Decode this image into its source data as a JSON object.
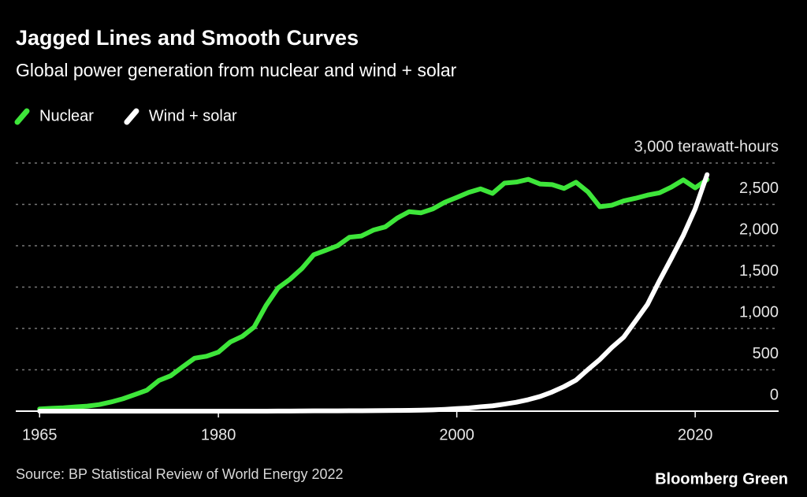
{
  "chart_data": {
    "type": "line",
    "title": "Jagged Lines and Smooth Curves",
    "subtitle": "Global power generation from nuclear and wind + solar",
    "source": "Source: BP Statistical Review of World Energy 2022",
    "credit": "Bloomberg Green",
    "x": [
      1965,
      1966,
      1967,
      1968,
      1969,
      1970,
      1971,
      1972,
      1973,
      1974,
      1975,
      1976,
      1977,
      1978,
      1979,
      1980,
      1981,
      1982,
      1983,
      1984,
      1985,
      1986,
      1987,
      1988,
      1989,
      1990,
      1991,
      1992,
      1993,
      1994,
      1995,
      1996,
      1997,
      1998,
      1999,
      2000,
      2001,
      2002,
      2003,
      2004,
      2005,
      2006,
      2007,
      2008,
      2009,
      2010,
      2011,
      2012,
      2013,
      2014,
      2015,
      2016,
      2017,
      2018,
      2019,
      2020,
      2021
    ],
    "series": [
      {
        "name": "Nuclear",
        "color": "#3ee63a",
        "values": [
          26,
          34,
          40,
          51,
          61,
          79,
          111,
          150,
          201,
          253,
          370,
          428,
          536,
          640,
          664,
          714,
          836,
          904,
          1017,
          1278,
          1489,
          1594,
          1724,
          1891,
          1945,
          2000,
          2103,
          2118,
          2189,
          2228,
          2334,
          2412,
          2398,
          2446,
          2526,
          2584,
          2645,
          2688,
          2633,
          2757,
          2770,
          2803,
          2746,
          2739,
          2693,
          2768,
          2652,
          2472,
          2490,
          2542,
          2574,
          2612,
          2640,
          2709,
          2796,
          2700,
          2800
        ]
      },
      {
        "name": "Wind + solar",
        "color": "#ffffff",
        "values": [
          0,
          0,
          0,
          0,
          0,
          0,
          0,
          0,
          0,
          0,
          0,
          0,
          0,
          0,
          0,
          0,
          0,
          0,
          0,
          0,
          1,
          1,
          2,
          3,
          3,
          4,
          5,
          5,
          6,
          7,
          8,
          9,
          12,
          16,
          22,
          31,
          38,
          53,
          64,
          85,
          108,
          139,
          178,
          232,
          297,
          375,
          503,
          625,
          769,
          894,
          1092,
          1292,
          1577,
          1847,
          2125,
          2446,
          2860
        ]
      }
    ],
    "xlim": [
      1963,
      2027
    ],
    "xticks": [
      1965,
      1980,
      2000,
      2020
    ],
    "ylim": [
      0,
      3000
    ],
    "yticks": [
      0,
      500,
      {
        "value": 1000,
        "label": "1,000"
      },
      {
        "value": 1500,
        "label": "1,500"
      },
      {
        "value": 2000,
        "label": "2,000"
      },
      {
        "value": 2500,
        "label": "2,500"
      },
      {
        "value": 3000,
        "label": "3,000 terawatt-hours"
      }
    ],
    "grid": true
  }
}
